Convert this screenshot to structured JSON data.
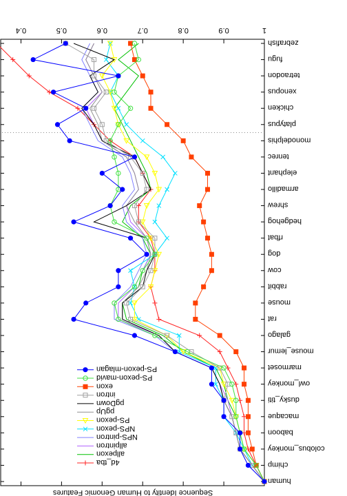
{
  "chart_data": {
    "type": "line",
    "orientation": "rotated-180",
    "title": "",
    "xlabel": "",
    "ylabel": "Sequence Identity to Human Genomic Features",
    "ylim": [
      0.35,
      1.0
    ],
    "yticks": [
      "1",
      "0.9",
      "0.8",
      "0.7",
      "0.6",
      "0.5",
      "0.4"
    ],
    "ytick_values": [
      1.0,
      0.9,
      0.8,
      0.7,
      0.6,
      0.5,
      0.4
    ],
    "grid": false,
    "legend_position": "top-right",
    "categories": [
      "human",
      "chimp",
      "colobus_monkey",
      "baboon",
      "macaque",
      "dusky_titi",
      "owl_monkey",
      "marmoset",
      "mouse_lemur",
      "galago",
      "rat",
      "mouse",
      "rabbit",
      "cow",
      "dog",
      "rfbat",
      "hedgehog",
      "shrew",
      "armadillo",
      "elephant",
      "tenrec",
      "monodelphis",
      "platypus",
      "chicken",
      "xenopus",
      "tetraodon",
      "fugu",
      "zebrafish"
    ],
    "divider_after": "monodelphis",
    "series": [
      {
        "name": "4d_tba",
        "color": "#ff2020",
        "marker": "plus",
        "values": [
          1.0,
          0.98,
          0.96,
          0.95,
          0.95,
          0.94,
          0.93,
          0.91,
          0.89,
          0.84,
          0.74,
          0.73,
          0.72,
          0.73,
          0.73,
          0.72,
          0.69,
          0.69,
          0.72,
          0.7,
          0.68,
          0.62,
          0.58,
          0.54,
          0.47,
          0.42,
          0.38,
          0.34
        ]
      },
      {
        "name": "allpexon",
        "color": "#00c000",
        "marker": "none",
        "values": [
          1.0,
          0.98,
          0.95,
          0.94,
          0.93,
          0.91,
          0.9,
          0.88,
          0.8,
          0.75,
          0.66,
          0.65,
          0.69,
          0.7,
          0.72,
          0.7,
          0.65,
          0.67,
          0.72,
          0.71,
          0.69,
          0.67,
          0.65,
          0.63,
          0.66,
          0.69,
          0.64,
          0.69
        ]
      },
      {
        "name": "allpintron",
        "color": "#b060ff",
        "marker": "none",
        "values": [
          1.0,
          0.97,
          0.94,
          0.93,
          0.92,
          0.91,
          0.89,
          0.87,
          0.78,
          0.74,
          0.64,
          0.64,
          0.68,
          0.7,
          0.72,
          0.71,
          0.67,
          0.66,
          0.69,
          0.68,
          0.66,
          0.6,
          0.58,
          0.56,
          0.6,
          0.58,
          0.56,
          0.58
        ]
      },
      {
        "name": "NPS-pintron",
        "color": "#8080ff",
        "marker": "none",
        "values": [
          1.0,
          0.97,
          0.94,
          0.93,
          0.92,
          0.9,
          0.89,
          0.87,
          0.78,
          0.73,
          0.63,
          0.63,
          0.67,
          0.69,
          0.71,
          0.7,
          0.66,
          0.65,
          0.68,
          0.67,
          0.65,
          0.59,
          0.57,
          0.55,
          0.59,
          0.57,
          0.55,
          0.57
        ]
      },
      {
        "name": "NPS-pexon",
        "color": "#00e0ff",
        "marker": "x",
        "values": [
          1.0,
          0.97,
          0.95,
          0.93,
          0.9,
          0.9,
          0.88,
          0.88,
          0.79,
          0.79,
          0.69,
          0.67,
          0.68,
          0.67,
          0.73,
          0.76,
          0.73,
          0.74,
          0.76,
          0.78,
          0.75,
          0.7,
          0.66,
          0.64,
          0.62,
          0.64,
          0.61,
          0.62
        ]
      },
      {
        "name": "PS-pexon",
        "color": "#ffff00",
        "marker": "triangle",
        "values": [
          1.0,
          0.98,
          0.95,
          0.94,
          0.93,
          0.92,
          0.9,
          0.89,
          0.8,
          0.76,
          0.68,
          0.68,
          0.72,
          0.73,
          0.74,
          0.72,
          0.7,
          0.71,
          0.74,
          0.73,
          0.71,
          0.66,
          0.64,
          0.63,
          0.62,
          0.6,
          0.63,
          0.62
        ]
      },
      {
        "name": "pgUp",
        "color": "#909090",
        "marker": "none",
        "values": [
          1.0,
          0.97,
          0.94,
          0.93,
          0.92,
          0.9,
          0.89,
          0.87,
          0.78,
          0.74,
          0.65,
          0.65,
          0.69,
          0.71,
          0.72,
          0.71,
          0.68,
          0.66,
          0.69,
          0.68,
          0.66,
          0.6,
          0.59,
          0.57,
          0.6,
          0.58,
          0.56,
          0.58
        ]
      },
      {
        "name": "pgDown",
        "color": "#000000",
        "marker": "none",
        "values": [
          1.0,
          0.97,
          0.94,
          0.93,
          0.92,
          0.9,
          0.89,
          0.87,
          0.78,
          0.74,
          0.65,
          0.65,
          0.7,
          0.71,
          0.73,
          0.71,
          0.58,
          0.66,
          0.72,
          0.7,
          0.68,
          0.6,
          0.58,
          0.55,
          0.59,
          0.57,
          0.63,
          0.53
        ]
      },
      {
        "name": "intron",
        "color": "#a0a0a0",
        "marker": "square-open",
        "values": [
          1.0,
          0.97,
          0.94,
          0.93,
          0.92,
          0.9,
          0.91,
          0.89,
          0.82,
          0.76,
          0.67,
          0.66,
          0.7,
          0.72,
          0.73,
          0.73,
          0.69,
          0.68,
          0.71,
          0.7,
          0.67,
          0.61,
          0.6,
          0.58,
          0.61,
          0.58,
          0.58,
          0.51
        ]
      },
      {
        "name": "exon",
        "color": "#ff4000",
        "marker": "square",
        "values": [
          1.0,
          0.98,
          0.97,
          0.96,
          0.96,
          0.96,
          0.95,
          0.95,
          0.93,
          0.89,
          0.83,
          0.83,
          0.85,
          0.87,
          0.87,
          0.86,
          0.85,
          0.84,
          0.86,
          0.86,
          0.82,
          0.8,
          0.76,
          0.72,
          0.72,
          0.7,
          0.68,
          0.67
        ]
      },
      {
        "name": "PS-pexon-mavid",
        "color": "#40e040",
        "marker": "circle-open",
        "values": [
          1.0,
          0.98,
          0.95,
          0.94,
          0.93,
          0.93,
          0.92,
          0.9,
          0.81,
          0.73,
          0.64,
          0.63,
          0.68,
          0.7,
          0.73,
          0.71,
          0.63,
          0.62,
          0.64,
          0.64,
          0.63,
          0.62,
          0.64,
          0.67,
          0.63,
          0.64,
          0.69,
          0.68
        ]
      },
      {
        "name": "PS-pexon-mlagan",
        "color": "#0000ff",
        "marker": "circle",
        "values": [
          1.0,
          0.96,
          0.94,
          0.94,
          0.9,
          0.9,
          0.87,
          0.87,
          0.78,
          0.68,
          0.53,
          0.56,
          0.64,
          0.64,
          0.71,
          0.67,
          0.53,
          0.62,
          0.65,
          0.6,
          0.68,
          0.52,
          0.49,
          0.56,
          0.48,
          0.64,
          0.43,
          0.51
        ]
      }
    ]
  }
}
